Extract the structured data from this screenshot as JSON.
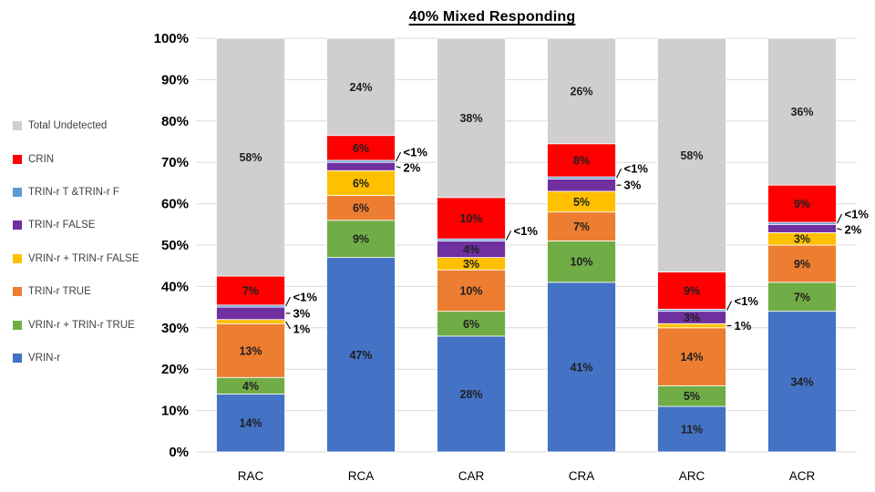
{
  "chart_data": {
    "type": "bar",
    "stacked": true,
    "title": "40% Mixed Responding",
    "categories": [
      "RAC",
      "RCA",
      "CAR",
      "CRA",
      "ARC",
      "ACR"
    ],
    "ylim": [
      0,
      100
    ],
    "ytick_labels": [
      "0%",
      "10%",
      "20%",
      "30%",
      "40%",
      "50%",
      "60%",
      "70%",
      "80%",
      "90%",
      "100%"
    ],
    "grid": true,
    "legend_position": "left",
    "gridline_color": "#D9D9D9",
    "axis_text_color": "#000000",
    "legend_text_color": "#404040",
    "data_label_color": "#1f1f1f",
    "series": [
      {
        "name": "VRIN-r",
        "color": "#4472C4",
        "values": [
          14,
          47,
          28,
          41,
          11,
          34
        ],
        "labels": [
          "14%",
          "47%",
          "28%",
          "41%",
          "11%",
          "34%"
        ],
        "placement": [
          "in",
          "in",
          "in",
          "in",
          "in",
          "in"
        ]
      },
      {
        "name": "VRIN-r + TRIN-r TRUE",
        "color": "#70AD47",
        "values": [
          4,
          9,
          6,
          10,
          5,
          7
        ],
        "labels": [
          "4%",
          "9%",
          "6%",
          "10%",
          "5%",
          "7%"
        ],
        "placement": [
          "in",
          "in",
          "in",
          "in",
          "in",
          "in"
        ]
      },
      {
        "name": "TRIN-r TRUE",
        "color": "#ED7D31",
        "values": [
          13,
          6,
          10,
          7,
          14,
          9
        ],
        "labels": [
          "13%",
          "6%",
          "10%",
          "7%",
          "14%",
          "9%"
        ],
        "placement": [
          "in",
          "in",
          "in",
          "in",
          "in",
          "in"
        ]
      },
      {
        "name": "VRIN-r + TRIN-r FALSE",
        "color": "#FFC000",
        "values": [
          1,
          6,
          3,
          5,
          1,
          3
        ],
        "labels": [
          "1%",
          "6%",
          "3%",
          "5%",
          "1%",
          "3%"
        ],
        "placement": [
          "out",
          "in",
          "in",
          "in",
          "out",
          "in"
        ]
      },
      {
        "name": "TRIN-r FALSE",
        "color": "#7030A0",
        "values": [
          3,
          2,
          4,
          3,
          3,
          2
        ],
        "labels": [
          "3%",
          "2%",
          "4%",
          "3%",
          "3%",
          "2%"
        ],
        "placement": [
          "out",
          "out",
          "in",
          "out",
          "in",
          "out"
        ]
      },
      {
        "name": "TRIN-r T &TRIN-r F",
        "color": "#5B9BD5",
        "values": [
          0.5,
          0.5,
          0.5,
          0.5,
          0.5,
          0.5
        ],
        "labels": [
          "<1%",
          "<1%",
          "<1%",
          "<1%",
          "<1%",
          "<1%"
        ],
        "placement": [
          "out",
          "out",
          "out",
          "out",
          "out",
          "out"
        ]
      },
      {
        "name": "CRIN",
        "color": "#FF0000",
        "values": [
          7,
          6,
          10,
          8,
          9,
          9
        ],
        "labels": [
          "7%",
          "6%",
          "10%",
          "8%",
          "9%",
          "9%"
        ],
        "placement": [
          "in",
          "in",
          "in",
          "in",
          "in",
          "in"
        ]
      },
      {
        "name": "Total Undetected",
        "color": "#D0CECE",
        "values": [
          58,
          24,
          38,
          26,
          58,
          36
        ],
        "labels": [
          "58%",
          "24%",
          "38%",
          "26%",
          "58%",
          "36%"
        ],
        "placement": [
          "in",
          "in",
          "in",
          "in",
          "in",
          "in"
        ],
        "fill_to_top": true
      }
    ],
    "legend_items_top_to_bottom": [
      "Total Undetected",
      "CRIN",
      "TRIN-r T &TRIN-r F",
      "TRIN-r FALSE",
      "VRIN-r + TRIN-r FALSE",
      "TRIN-r TRUE",
      "VRIN-r + TRIN-r TRUE",
      "VRIN-r"
    ]
  }
}
